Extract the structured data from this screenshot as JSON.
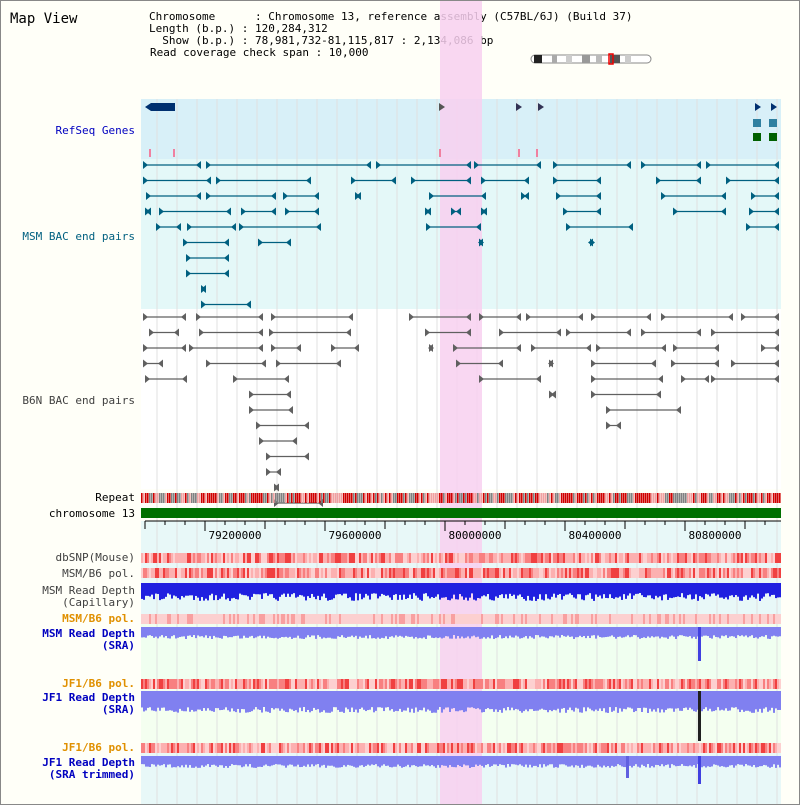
{
  "header": {
    "title": "Map View",
    "chromosome_line": "Chromosome      : Chromosome 13, reference assembly (C57BL/6J) (Build 37)",
    "length_line": "Length (b.p.) : 120,284,312",
    "show_line": "  Show (b.p.) : 78,981,732-81,115,817 : 2,134,086 bp",
    "span_line": "Read coverage check span : 10,000"
  },
  "tracks": {
    "refseq": "RefSeq Genes",
    "msm_bac": "MSM BAC end pairs",
    "b6n_bac": "B6N BAC end pairs",
    "repeat": "Repeat",
    "chromosome": "chromosome 13",
    "dbsnp": "dbSNP(Mouse)",
    "msm_b6_pol_1": "MSM/B6 pol.",
    "msm_read_depth_cap_1": "MSM Read Depth",
    "msm_read_depth_cap_2": "(Capillary)",
    "msm_b6_pol_2": "MSM/B6 pol.",
    "msm_read_depth_sra_1": "MSM Read Depth",
    "msm_read_depth_sra_2": "(SRA)",
    "jf1_b6_pol_1": "JF1/B6 pol.",
    "jf1_read_depth_sra_1": "JF1 Read Depth",
    "jf1_read_depth_sra_2": "(SRA)",
    "jf1_b6_pol_2": "JF1/B6 pol.",
    "jf1_read_depth_trim_1": "JF1 Read Depth",
    "jf1_read_depth_trim_2": "(SRA trimmed)"
  },
  "axis": {
    "ticks": [
      "79200000",
      "79600000",
      "80000000",
      "80400000",
      "80800000"
    ]
  },
  "colors": {
    "label_blue": "#0000c0",
    "label_teal": "#006080",
    "label_gray": "#404040",
    "label_orange": "#e09000",
    "refseq_bg": "#d8f0f8",
    "highlight": "#f8d0f0",
    "chrom_green": "#007000"
  }
}
